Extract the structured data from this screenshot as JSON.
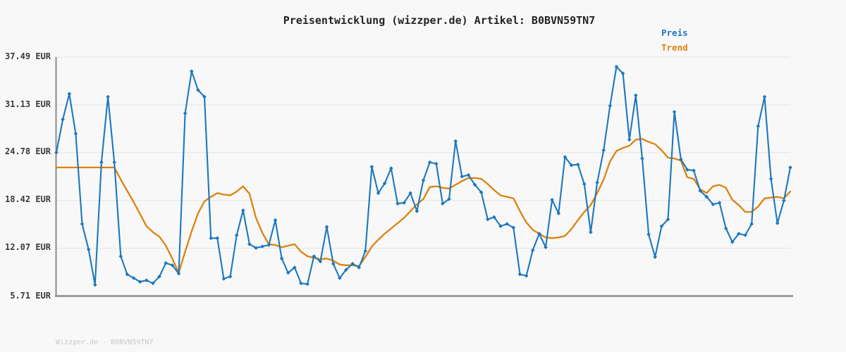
{
  "title": "Preisentwicklung (wizzper.de) Artikel: B0BVN59TN7",
  "watermark": "Wizzper.de - B0BVN59TN7",
  "legend": {
    "preis": "Preis",
    "trend": "Trend"
  },
  "colors": {
    "preis": "#1c78bf",
    "trend": "#dd820e",
    "grid": "#e4e4e4",
    "axis": "#8c8c8c",
    "tick_label": "#3a3a3a",
    "title": "#242424",
    "watermark": "#c8c8c8",
    "background": "#f8f8f8"
  },
  "y_axis": {
    "labels": [
      "37.49 EUR",
      "31.13 EUR",
      "24.78 EUR",
      "18.42 EUR",
      "12.07 EUR",
      "5.71 EUR"
    ],
    "values": [
      37.49,
      31.13,
      24.78,
      18.42,
      12.07,
      5.71
    ]
  },
  "chart_data": {
    "type": "line",
    "title": "Preisentwicklung (wizzper.de) Artikel: B0BVN59TN7",
    "xlabel": "",
    "ylabel": "",
    "x_tick_labels": [],
    "y_ticks": [
      37.49,
      31.13,
      24.78,
      18.42,
      12.07,
      5.71
    ],
    "ylim": [
      5.71,
      37.49
    ],
    "grid": true,
    "legend_position": "top-right",
    "x_count": 115,
    "unit": "EUR",
    "series": [
      {
        "name": "Preis",
        "color": "#1c78bf",
        "markers": true,
        "values": [
          24.8,
          29.2,
          32.6,
          27.3,
          15.3,
          11.9,
          7.2,
          23.5,
          32.2,
          23.5,
          11.0,
          8.6,
          8.1,
          7.6,
          7.8,
          7.4,
          8.3,
          10.1,
          9.8,
          8.7,
          30.0,
          35.6,
          33.1,
          32.2,
          13.4,
          13.4,
          8.0,
          8.3,
          13.8,
          17.1,
          12.6,
          12.1,
          12.3,
          12.5,
          15.8,
          10.7,
          8.8,
          9.5,
          7.4,
          7.3,
          11.0,
          10.3,
          14.9,
          10.0,
          8.1,
          9.2,
          10.0,
          9.5,
          11.7,
          22.9,
          19.4,
          20.7,
          22.7,
          18.0,
          18.1,
          19.4,
          17.0,
          21.1,
          23.5,
          23.3,
          18.0,
          18.6,
          26.3,
          21.6,
          21.8,
          20.5,
          19.5,
          15.9,
          16.2,
          15.0,
          15.3,
          14.8,
          8.6,
          8.4,
          11.8,
          14.0,
          12.2,
          18.5,
          16.7,
          24.2,
          23.1,
          23.2,
          20.6,
          14.2,
          20.8,
          25.1,
          31.0,
          36.2,
          35.3,
          26.5,
          32.4,
          24.0,
          13.9,
          10.9,
          15.0,
          15.9,
          30.2,
          23.9,
          22.5,
          22.4,
          19.7,
          18.9,
          17.9,
          18.1,
          14.7,
          12.9,
          14.0,
          13.8,
          15.3,
          28.3,
          32.2,
          21.3,
          15.4,
          18.4,
          22.8
        ]
      },
      {
        "name": "Trend",
        "color": "#dd820e",
        "markers": false,
        "values": [
          22.8,
          22.8,
          22.8,
          22.8,
          22.8,
          22.8,
          22.8,
          22.8,
          22.8,
          22.8,
          21.2,
          19.7,
          18.2,
          16.6,
          15.0,
          14.2,
          13.6,
          12.4,
          10.7,
          8.8,
          11.6,
          14.3,
          16.7,
          18.3,
          18.9,
          19.4,
          19.2,
          19.1,
          19.6,
          20.3,
          19.3,
          16.1,
          14.1,
          12.6,
          12.5,
          12.2,
          12.4,
          12.6,
          11.6,
          11.0,
          10.8,
          10.6,
          10.7,
          10.4,
          9.9,
          9.8,
          9.8,
          9.7,
          10.9,
          12.3,
          13.2,
          14.0,
          14.7,
          15.4,
          16.1,
          17.0,
          17.9,
          18.6,
          20.2,
          20.3,
          20.1,
          20.0,
          20.5,
          21.0,
          21.4,
          21.4,
          21.3,
          20.6,
          19.8,
          19.1,
          18.9,
          18.7,
          17.0,
          15.5,
          14.5,
          14.0,
          13.5,
          13.4,
          13.5,
          13.7,
          14.6,
          15.8,
          16.9,
          17.8,
          19.4,
          21.2,
          23.6,
          25.0,
          25.4,
          25.7,
          26.5,
          26.6,
          26.2,
          25.9,
          25.1,
          24.1,
          24.0,
          23.7,
          21.5,
          21.3,
          19.9,
          19.4,
          20.3,
          20.5,
          20.1,
          18.5,
          17.8,
          16.9,
          16.9,
          17.6,
          18.7,
          18.8,
          18.9,
          18.7,
          19.6
        ]
      }
    ]
  }
}
